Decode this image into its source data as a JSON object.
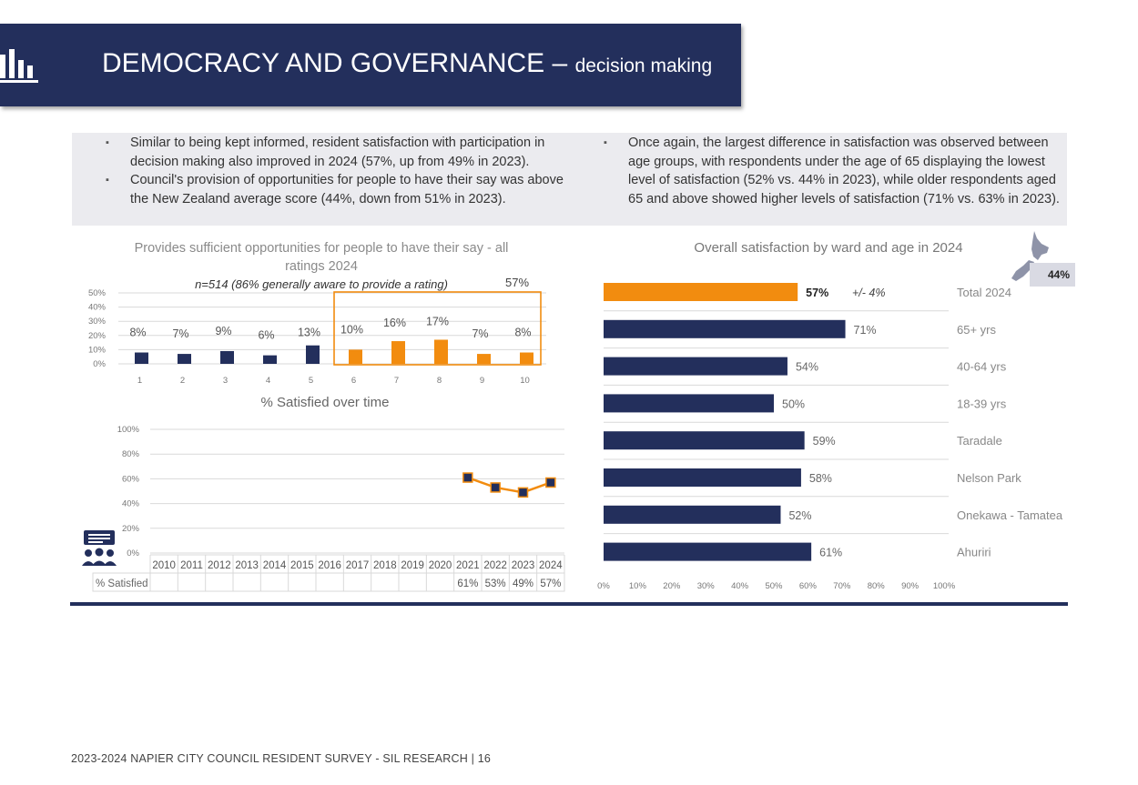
{
  "header": {
    "title": "DEMOCRACY AND GOVERNANCE –",
    "subtitle": "decision making",
    "icon": "bar-chart-icon"
  },
  "bullets_left": [
    "Similar to being kept informed, resident satisfaction with participation in decision making also improved in 2024 (57%, up from 49% in 2023).",
    "Council's provision of opportunities for people to have their say was above the New Zealand average score (44%, down from 51% in 2023)."
  ],
  "bullets_right": [
    "Once again, the largest difference in satisfaction was observed between age groups, with respondents under the age of 65 displaying the lowest level of satisfaction (52% vs. 44% in 2023), while older respondents aged 65 and above showed higher levels of satisfaction (71% vs. 63% in 2023)."
  ],
  "nz_badge": {
    "value": "44%",
    "icon": "nz-map-icon"
  },
  "footer": "2023-2024 NAPIER CITY COUNCIL RESIDENT SURVEY - SIL RESEARCH | 16",
  "colors": {
    "navy": "#232f5c",
    "orange": "#f28c0f",
    "grid": "#d9d9d9"
  },
  "chart_data": [
    {
      "type": "bar",
      "title": "Provides sufficient opportunities for people to have their say - all ratings 2024",
      "subtitle": "n=514 (86% generally aware to provide a rating)",
      "categories": [
        "1",
        "2",
        "3",
        "4",
        "5",
        "6",
        "7",
        "8",
        "9",
        "10"
      ],
      "values": [
        8,
        7,
        9,
        6,
        13,
        10,
        16,
        17,
        7,
        8
      ],
      "labels": [
        "8%",
        "7%",
        "9%",
        "6%",
        "13%",
        "10%",
        "16%",
        "17%",
        "7%",
        "8%"
      ],
      "highlight": {
        "from_category": "6",
        "to_category": "10",
        "label": "57%"
      },
      "yticks": [
        "0%",
        "10%",
        "20%",
        "30%",
        "40%",
        "50%"
      ],
      "ylim": [
        0,
        50
      ],
      "grid": true
    },
    {
      "type": "line",
      "title": "% Satisfied over time",
      "x": [
        "2010",
        "2011",
        "2012",
        "2013",
        "2014",
        "2015",
        "2016",
        "2017",
        "2018",
        "2019",
        "2020",
        "2021",
        "2022",
        "2023",
        "2024"
      ],
      "values": [
        null,
        null,
        null,
        null,
        null,
        null,
        null,
        null,
        null,
        null,
        null,
        61,
        53,
        49,
        57
      ],
      "table_row_label": "% Satisfied",
      "table_values": [
        "",
        "",
        "",
        "",
        "",
        "",
        "",
        "",
        "",
        "",
        "",
        "61%",
        "53%",
        "49%",
        "57%"
      ],
      "yticks": [
        "0%",
        "20%",
        "40%",
        "60%",
        "80%",
        "100%"
      ],
      "ylim": [
        0,
        100
      ],
      "grid": true,
      "icon": "audience-icon"
    },
    {
      "type": "bar",
      "orientation": "horizontal",
      "title": "Overall satisfaction by ward and age in 2024",
      "categories": [
        "Total 2024",
        "65+ yrs",
        "40-64 yrs",
        "18-39 yrs",
        "Taradale",
        "Nelson Park",
        "Onekawa - Tamatea",
        "Ahuriri"
      ],
      "values": [
        57,
        71,
        54,
        50,
        59,
        58,
        52,
        61
      ],
      "labels": [
        "57%",
        "71%",
        "54%",
        "50%",
        "59%",
        "58%",
        "52%",
        "61%"
      ],
      "margin_of_error": "+/- 4%",
      "xticks": [
        "0%",
        "10%",
        "20%",
        "30%",
        "40%",
        "50%",
        "60%",
        "70%",
        "80%",
        "90%",
        "100%"
      ],
      "xlim": [
        0,
        100
      ],
      "grid": true
    }
  ]
}
